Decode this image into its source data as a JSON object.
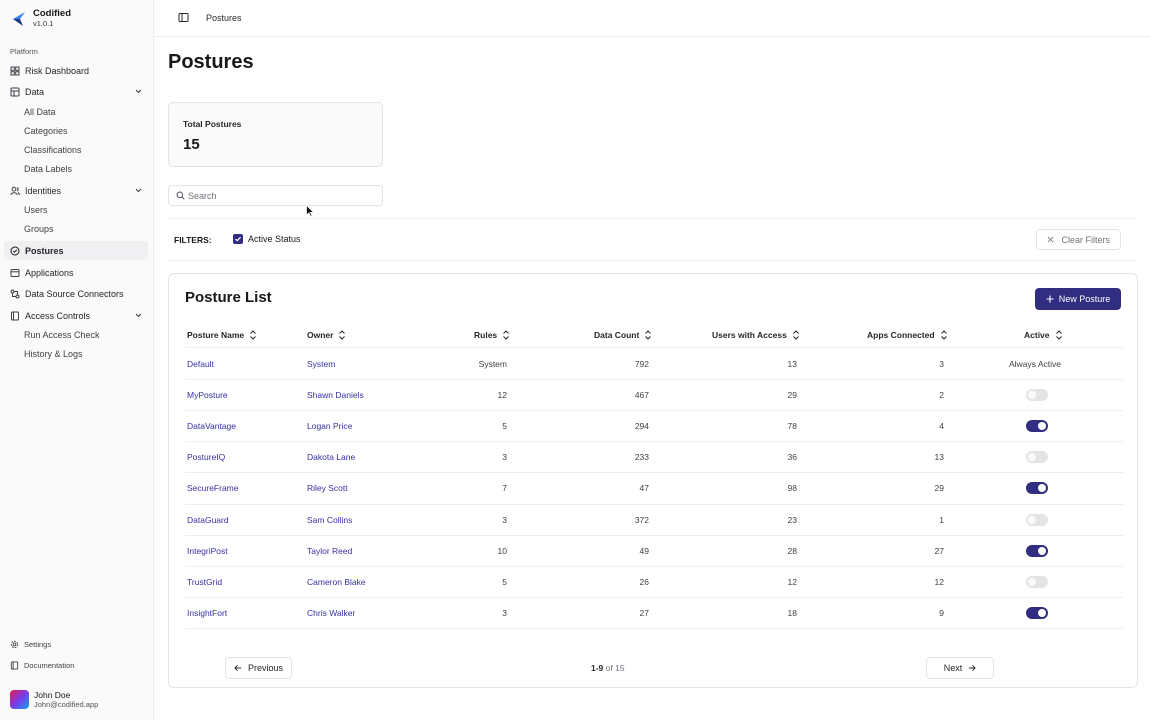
{
  "app": {
    "name": "Codified",
    "version": "v1.0.1"
  },
  "sidebar": {
    "section_label": "Platform",
    "items": [
      {
        "label": "Risk Dashboard",
        "icon": "dashboard-icon"
      },
      {
        "label": "Data",
        "icon": "data-icon"
      },
      {
        "label": "Identities",
        "icon": "identities-icon"
      },
      {
        "label": "Postures",
        "icon": "shield-icon"
      },
      {
        "label": "Applications",
        "icon": "window-icon"
      },
      {
        "label": "Data Source Connectors",
        "icon": "connector-icon"
      },
      {
        "label": "Access Controls",
        "icon": "book-icon"
      }
    ],
    "data_sub": [
      "All Data",
      "Categories",
      "Classifications",
      "Data Labels"
    ],
    "identities_sub": [
      "Users",
      "Groups"
    ],
    "access_sub": [
      "Run Access Check",
      "History & Logs"
    ],
    "footer": {
      "settings": "Settings",
      "documentation": "Documentation"
    },
    "user": {
      "name": "John Doe",
      "email": "John@codified.app"
    }
  },
  "topbar": {
    "breadcrumb": "Postures"
  },
  "page": {
    "title": "Postures"
  },
  "stat": {
    "label": "Total Postures",
    "value": "15"
  },
  "search": {
    "placeholder": "Search"
  },
  "filters": {
    "label": "FILTERS:",
    "chip": "Active Status",
    "clear": "Clear Filters"
  },
  "list": {
    "title": "Posture List",
    "new_button": "New Posture",
    "columns": [
      "Posture Name",
      "Owner",
      "Rules",
      "Data Count",
      "Users with Access",
      "Apps Connected",
      "Active"
    ],
    "rows": [
      {
        "name": "Default",
        "owner": "System",
        "rules": "System",
        "data": "792",
        "users": "13",
        "apps": "3",
        "active": "Always Active"
      },
      {
        "name": "MyPosture",
        "owner": "Shawn Daniels",
        "rules": "12",
        "data": "467",
        "users": "29",
        "apps": "2",
        "active": false
      },
      {
        "name": "DataVantage",
        "owner": "Logan Price",
        "rules": "5",
        "data": "294",
        "users": "78",
        "apps": "4",
        "active": true
      },
      {
        "name": "PostureIQ",
        "owner": "Dakota Lane",
        "rules": "3",
        "data": "233",
        "users": "36",
        "apps": "13",
        "active": false
      },
      {
        "name": "SecureFrame",
        "owner": "Riley Scott",
        "rules": "7",
        "data": "47",
        "users": "98",
        "apps": "29",
        "active": true
      },
      {
        "name": "DataGuard",
        "owner": "Sam Collins",
        "rules": "3",
        "data": "372",
        "users": "23",
        "apps": "1",
        "active": false
      },
      {
        "name": "IntegriPost",
        "owner": "Taylor Reed",
        "rules": "10",
        "data": "49",
        "users": "28",
        "apps": "27",
        "active": true
      },
      {
        "name": "TrustGrid",
        "owner": "Cameron Blake",
        "rules": "5",
        "data": "26",
        "users": "12",
        "apps": "12",
        "active": false
      },
      {
        "name": "InsightFort",
        "owner": "Chris Walker",
        "rules": "3",
        "data": "27",
        "users": "18",
        "apps": "9",
        "active": true
      }
    ]
  },
  "pagination": {
    "previous": "Previous",
    "next": "Next",
    "range": "1-9",
    "of": "of 15"
  },
  "colors": {
    "accent": "#312e81",
    "link": "#3730a3"
  }
}
